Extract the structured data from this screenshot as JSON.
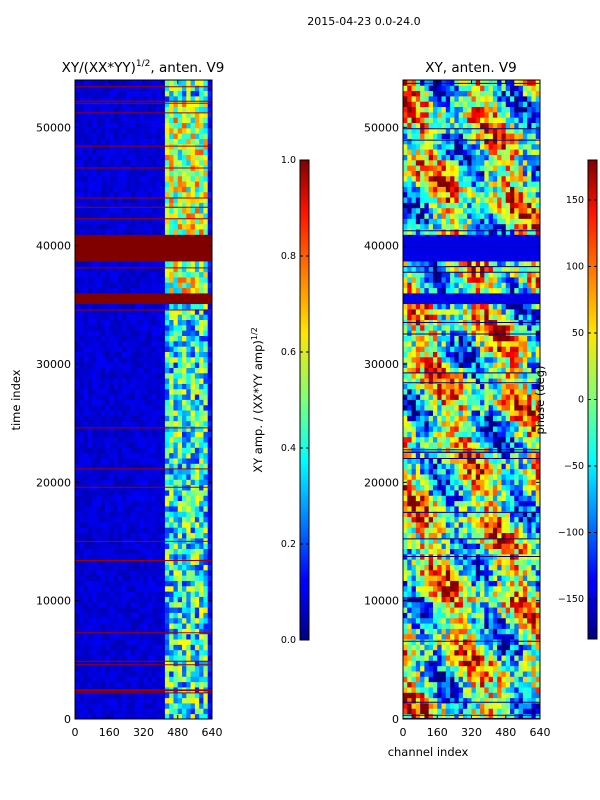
{
  "chart_data": {
    "type": "heatmap",
    "suptitle": "2015-04-23 0.0-24.0",
    "panels": [
      {
        "id": "amp",
        "title": "XY/(XX*YY)",
        "title_exp": "1/2",
        "title_suffix": ", anten. V9",
        "ylabel": "time index",
        "xlabel": "",
        "xlim": [
          0,
          640
        ],
        "ylim": [
          0,
          54000
        ],
        "xticks": [
          0,
          160,
          320,
          480,
          640
        ],
        "yticks": [
          0,
          10000,
          20000,
          30000,
          40000,
          50000
        ],
        "colorbar": {
          "label": "XY amp. / (XX*YY amp)",
          "label_exp": "1/2",
          "range": [
            0.0,
            1.0
          ],
          "ticks": [
            0.0,
            0.2,
            0.4,
            0.6,
            0.8,
            1.0
          ],
          "tick_labels": [
            "0.0",
            "0.2",
            "0.4",
            "0.6",
            "0.8",
            "1.0"
          ]
        },
        "flagged_blocks": [
          [
            35300,
            36200
          ],
          [
            38800,
            41000
          ]
        ]
      },
      {
        "id": "phase",
        "title": "XY, anten. V9",
        "ylabel": "",
        "xlabel": "channel index",
        "xlim": [
          0,
          640
        ],
        "ylim": [
          0,
          54000
        ],
        "xticks": [
          0,
          160,
          320,
          480,
          640
        ],
        "yticks": [
          0,
          10000,
          20000,
          30000,
          40000,
          50000
        ],
        "colorbar": {
          "label": "phase (deg)",
          "range": [
            -180,
            180
          ],
          "ticks": [
            -150,
            -100,
            -50,
            0,
            50,
            100,
            150
          ],
          "tick_labels": [
            "−150",
            "−100",
            "−50",
            "0",
            "50",
            "100",
            "150"
          ]
        },
        "flagged_blocks": [
          [
            35300,
            36200
          ],
          [
            38800,
            41000
          ]
        ]
      }
    ],
    "colormap": "jet"
  }
}
